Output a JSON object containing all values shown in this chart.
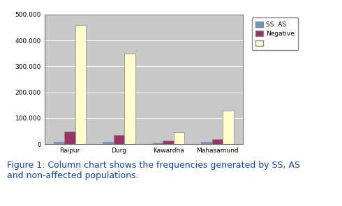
{
  "categories": [
    "Raipur",
    "Durg",
    "Kawardha",
    "Mahasamund"
  ],
  "ss_as": [
    8000,
    8000,
    5000,
    8000
  ],
  "negative": [
    50000,
    35000,
    15000,
    18000
  ],
  "non_affected": [
    460000,
    350000,
    47000,
    130000
  ],
  "ss_as_color": "#6699cc",
  "negative_color": "#993366",
  "non_affected_color": "#ffffcc",
  "bar_edge_color": "#888888",
  "plot_bg_color": "#c8c8c8",
  "ylim": [
    0,
    500000
  ],
  "yticks": [
    0,
    100000,
    200000,
    300000,
    400000,
    500000
  ],
  "ytick_labels": [
    "0",
    "100.000",
    "200.000",
    "300.000",
    "400.000",
    "500.000"
  ],
  "legend_labels": [
    "SS  AS",
    "Negative",
    ""
  ],
  "bar_width": 0.22,
  "figure_caption": "Figure 1: Column chart shows the frequencies generated by SS, AS\nand non-affected populations.",
  "caption_color": "#1144aa",
  "caption_fontsize": 9.0
}
